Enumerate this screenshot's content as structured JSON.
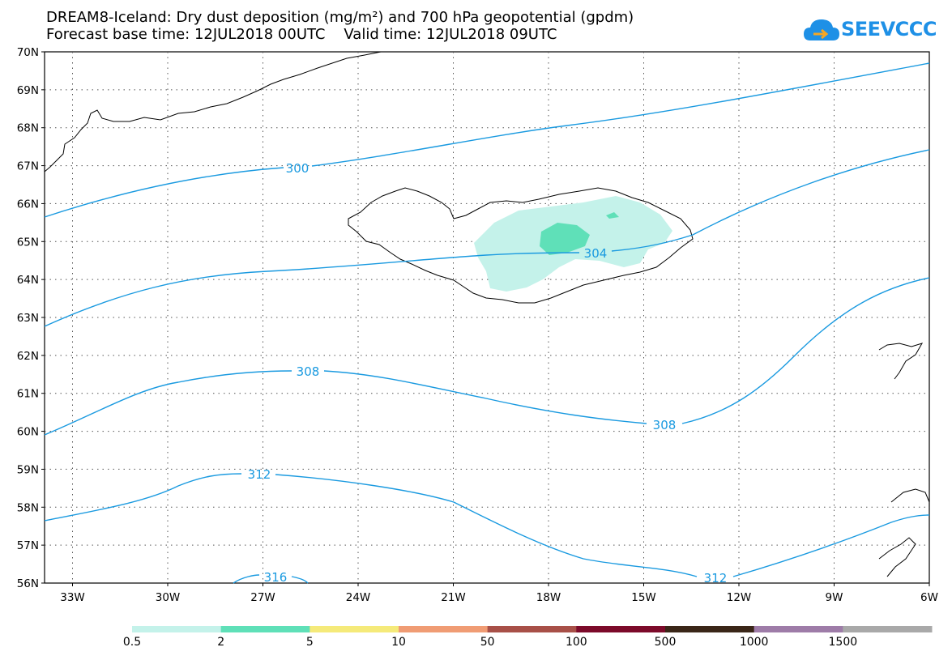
{
  "header": {
    "title_line1": "DREAM8-Iceland: Dry dust deposition (mg/m²) and 700 hPa geopotential (gpdm)",
    "title_line2": "Forecast base time: 12JUL2018 00UTC    Valid time: 12JUL2018 09UTC"
  },
  "logo": {
    "text": "SEEVCCC",
    "icon": "cloud-icon",
    "color": "#1e90e6"
  },
  "map": {
    "lat_labels": [
      "70N",
      "69N",
      "68N",
      "67N",
      "66N",
      "65N",
      "64N",
      "63N",
      "62N",
      "61N",
      "60N",
      "59N",
      "58N",
      "57N",
      "56N"
    ],
    "lon_labels": [
      "33W",
      "30W",
      "27W",
      "24W",
      "21W",
      "18W",
      "15W",
      "12W",
      "9W",
      "6W"
    ],
    "contour_color": "#1a9ae0",
    "contours": [
      {
        "value": "300"
      },
      {
        "value": "304"
      },
      {
        "value": "308"
      },
      {
        "value": "308"
      },
      {
        "value": "312"
      },
      {
        "value": "312"
      },
      {
        "value": "316"
      }
    ]
  },
  "legend": {
    "labels": [
      "0.5",
      "2",
      "5",
      "10",
      "50",
      "100",
      "500",
      "1000",
      "1500"
    ],
    "colors": [
      "#c4f2ea",
      "#5fe0b8",
      "#f5ea7a",
      "#f09c74",
      "#a85048",
      "#7c0a2a",
      "#3a2618",
      "#9e7ca8",
      "#a9a9a9"
    ]
  }
}
